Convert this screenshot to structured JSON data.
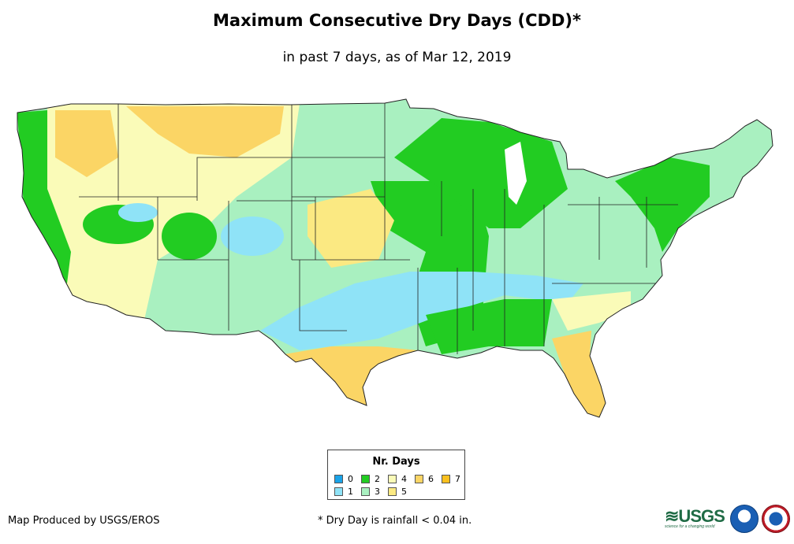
{
  "header": {
    "title": "Maximum Consecutive Dry Days (CDD)*",
    "subtitle": "in past 7 days, as of Mar 12, 2019"
  },
  "legend": {
    "title": "Nr. Days",
    "items": [
      {
        "label": "0",
        "color": "#1aa3e8"
      },
      {
        "label": "1",
        "color": "#8fe3f7"
      },
      {
        "label": "2",
        "color": "#22cc22"
      },
      {
        "label": "3",
        "color": "#a9f0c0"
      },
      {
        "label": "4",
        "color": "#fafbb8"
      },
      {
        "label": "5",
        "color": "#fbe982"
      },
      {
        "label": "6",
        "color": "#fbd565"
      },
      {
        "label": "7",
        "color": "#fbc01e"
      }
    ]
  },
  "footer": {
    "credit": "Map Produced by USGS/EROS",
    "footnote": "* Dry Day is rainfall < 0.04 in.",
    "usgs_text": "≋USGS",
    "usgs_tagline": "science for a changing world"
  },
  "logos": {
    "noaa": "noaa-logo",
    "nws": "nws-logo"
  }
}
